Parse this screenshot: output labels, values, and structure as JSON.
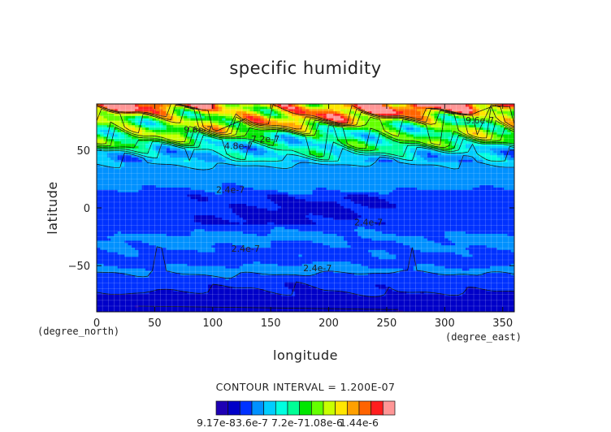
{
  "chart_data": {
    "type": "heatmap",
    "title": "specific humidity",
    "xlabel": "longitude",
    "ylabel": "latitude",
    "x_unit": "(degree_east)",
    "y_unit": "(degree_north)",
    "xlim": [
      0,
      360
    ],
    "ylim": [
      -90,
      90
    ],
    "x_ticks": [
      0,
      50,
      100,
      150,
      200,
      250,
      300,
      350
    ],
    "y_ticks": [
      50,
      0,
      -50
    ],
    "contour_interval_label": "CONTOUR INTERVAL = 1.200E-07",
    "colorbar_labels": [
      "9.17e-8",
      "3.6e-7",
      "7.2e-7",
      "1.08e-6",
      "1.44e-6"
    ],
    "colors": [
      "#1e00b4",
      "#0000c8",
      "#0032ff",
      "#0091ff",
      "#00cdff",
      "#00ffe0",
      "#00ff96",
      "#00e600",
      "#64ff00",
      "#c8ff00",
      "#ffe600",
      "#ffa000",
      "#ff6400",
      "#ff1e1e",
      "#ff9696"
    ],
    "lat_profile": [
      {
        "lat": -90,
        "value": 1.5e-07
      },
      {
        "lat": -78,
        "value": 1.5e-07
      },
      {
        "lat": -72,
        "value": 2.2e-07
      },
      {
        "lat": -60,
        "value": 2.8e-07
      },
      {
        "lat": -54,
        "value": 3.8e-07
      },
      {
        "lat": -45,
        "value": 2.8e-07
      },
      {
        "lat": -33,
        "value": 3.3e-07
      },
      {
        "lat": -25,
        "value": 3.6e-07
      },
      {
        "lat": -15,
        "value": 2.8e-07
      },
      {
        "lat": 10,
        "value": 2.8e-07
      },
      {
        "lat": 20,
        "value": 3.7e-07
      },
      {
        "lat": 30,
        "value": 3.8e-07
      },
      {
        "lat": 40,
        "value": 4.8e-07
      },
      {
        "lat": 50,
        "value": 6e-07
      },
      {
        "lat": 56,
        "value": 7.2e-07
      },
      {
        "lat": 64,
        "value": 8.4e-07
      },
      {
        "lat": 72,
        "value": 1.02e-06
      },
      {
        "lat": 80,
        "value": 1.2e-06
      },
      {
        "lat": 86,
        "value": 1.38e-06
      },
      {
        "lat": 90,
        "value": 1.44e-06
      }
    ],
    "contour_labels": [
      {
        "text": "9.6e-7",
        "x": 75,
        "y": 65
      },
      {
        "text": "4.8e-7",
        "x": 110,
        "y": 51
      },
      {
        "text": "7.2e-7",
        "x": 133,
        "y": 57
      },
      {
        "text": "9.6e-7",
        "x": 318,
        "y": 73
      },
      {
        "text": "2.4e-7",
        "x": 103,
        "y": 13
      },
      {
        "text": "2.4e-7",
        "x": 222,
        "y": -15
      },
      {
        "text": "2.4e-7",
        "x": 116,
        "y": -38
      },
      {
        "text": "2.4e-7",
        "x": 178,
        "y": -55
      }
    ]
  }
}
